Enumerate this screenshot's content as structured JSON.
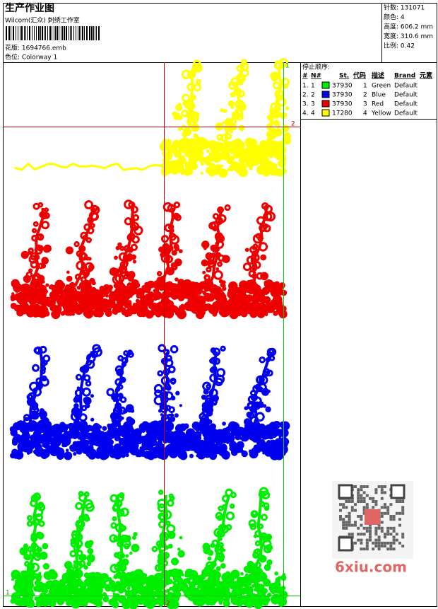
{
  "header": {
    "title": "生产作业图",
    "studio": "Wilcom(汇众) 刺绣工作室",
    "design": "花版: 1694766.emb",
    "colorway": "色位: Colorway 1"
  },
  "stats": [
    "针数: 131071",
    "颜色: 4",
    "高度: 606.2 mm",
    "宽度: 310.6 mm",
    "比例: 0.42"
  ],
  "stop_sequence": {
    "title": "停止顺序:",
    "columns": [
      "#",
      "N#",
      "St.",
      "代码",
      "描述",
      "Brand",
      "元素"
    ],
    "rows": [
      [
        "1.",
        "1",
        "37930",
        "1",
        "Green",
        "Default"
      ],
      [
        "2.",
        "2",
        "37930",
        "2",
        "Blue",
        "Default"
      ],
      [
        "3.",
        "3",
        "37930",
        "3",
        "Red",
        "Default"
      ],
      [
        "4.",
        "4",
        "17280",
        "4",
        "Yellow",
        "Default"
      ]
    ],
    "colors": [
      "#00ee00",
      "#0000ee",
      "#ee0000",
      "#ffff00"
    ]
  },
  "guides": [
    "1",
    "2",
    "2",
    "1"
  ],
  "watermark": "6xiu.com"
}
